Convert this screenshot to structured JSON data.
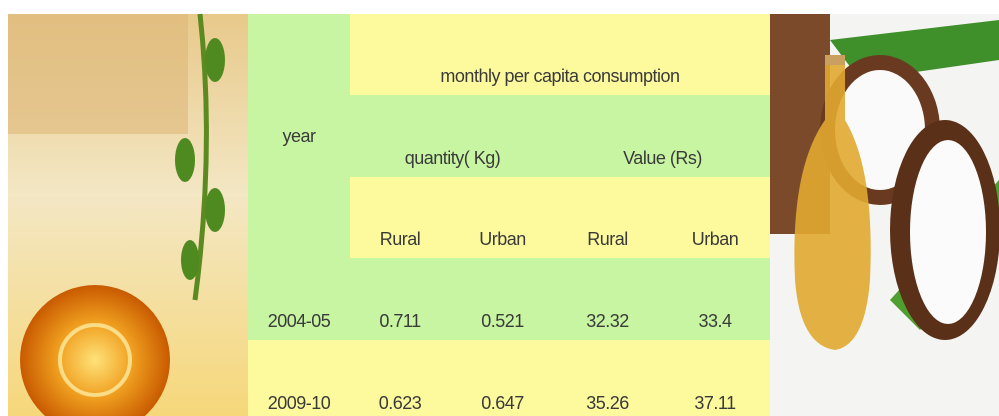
{
  "table": {
    "header": {
      "year": "year",
      "group": "monthly per capita consumption",
      "subgroups": [
        "quantity( Kg)",
        "Value (Rs)"
      ],
      "columns": [
        "Rural",
        "Urban",
        "Rural",
        "Urban"
      ]
    },
    "rows": [
      [
        "2004-05",
        "0.711",
        "0.521",
        "32.32",
        "33.4"
      ],
      [
        "2009-10",
        "0.623",
        "0.647",
        "35.26",
        "37.11"
      ]
    ]
  }
}
